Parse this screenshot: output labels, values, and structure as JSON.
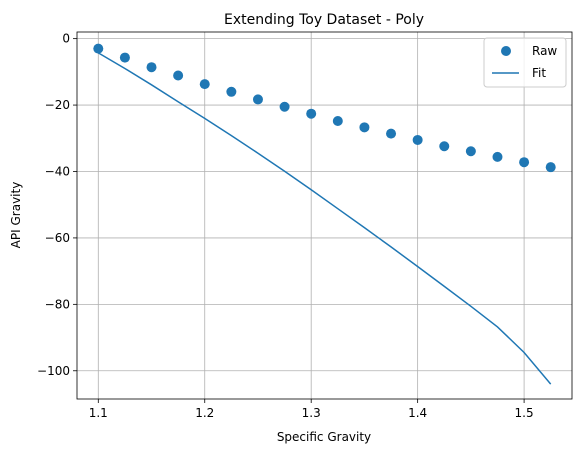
{
  "chart_data": {
    "type": "scatter",
    "title": "Extending Toy Dataset - Poly",
    "xlabel": "Specific Gravity",
    "ylabel": "API Gravity",
    "xlim": [
      1.08,
      1.545
    ],
    "ylim": [
      -108.5,
      2.0
    ],
    "xticks": [
      1.1,
      1.2,
      1.3,
      1.4,
      1.5
    ],
    "xtick_labels": [
      "1.1",
      "1.2",
      "1.3",
      "1.4",
      "1.5"
    ],
    "yticks": [
      0,
      -20,
      -40,
      -60,
      -80,
      -100
    ],
    "ytick_labels": [
      "0",
      "−20",
      "−40",
      "−60",
      "−80",
      "−100"
    ],
    "grid": true,
    "legend_position": "top-right",
    "colors": {
      "series": "#1f77b4",
      "grid": "#b0b0b0",
      "axes": "#000000"
    },
    "series": [
      {
        "name": "Raw",
        "kind": "scatter",
        "x": [
          1.1,
          1.125,
          1.15,
          1.175,
          1.2,
          1.225,
          1.25,
          1.275,
          1.3,
          1.325,
          1.35,
          1.375,
          1.4,
          1.425,
          1.45,
          1.475,
          1.5,
          1.525
        ],
        "y": [
          -3.0,
          -5.7,
          -8.6,
          -11.1,
          -13.7,
          -16.0,
          -18.3,
          -20.5,
          -22.6,
          -24.8,
          -26.7,
          -28.6,
          -30.5,
          -32.4,
          -33.9,
          -35.6,
          -37.2,
          -38.7
        ]
      },
      {
        "name": "Fit",
        "kind": "line",
        "x": [
          1.1,
          1.125,
          1.15,
          1.175,
          1.2,
          1.225,
          1.25,
          1.275,
          1.3,
          1.325,
          1.35,
          1.375,
          1.4,
          1.425,
          1.45,
          1.475,
          1.5,
          1.525
        ],
        "y": [
          -4.3,
          -9.0,
          -13.9,
          -19.0,
          -24.0,
          -29.2,
          -34.5,
          -39.9,
          -45.5,
          -51.2,
          -56.9,
          -62.7,
          -68.6,
          -74.6,
          -80.6,
          -86.8,
          -94.5,
          -104.0
        ]
      }
    ]
  }
}
